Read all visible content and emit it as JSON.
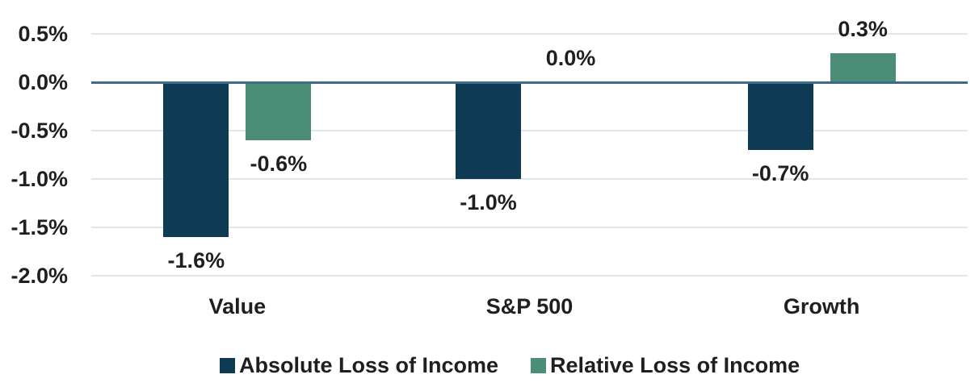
{
  "chart_data": {
    "type": "bar",
    "title": "",
    "categories": [
      "Value",
      "S&P 500",
      "Growth"
    ],
    "series": [
      {
        "name": "Absolute Loss of Income",
        "color": "#0e3a54",
        "values": [
          -1.6,
          -1.0,
          -0.7
        ],
        "labels": [
          "-1.6%",
          "-1.0%",
          "-0.7%"
        ]
      },
      {
        "name": "Relative Loss of Income",
        "color": "#4b8d76",
        "values": [
          -0.6,
          0.0,
          0.3
        ],
        "labels": [
          "-0.6%",
          "0.0%",
          "0.3%"
        ]
      }
    ],
    "yticks": [
      {
        "label": "0.5%",
        "value": 0.5
      },
      {
        "label": "0.0%",
        "value": 0.0
      },
      {
        "label": "-0.5%",
        "value": -0.5
      },
      {
        "label": "-1.0%",
        "value": -1.0
      },
      {
        "label": "-1.5%",
        "value": -1.5
      },
      {
        "label": "-2.0%",
        "value": -2.0
      }
    ],
    "ylim": [
      -2.0,
      0.5
    ],
    "grid": true,
    "legend_position": "bottom",
    "xlabel": "",
    "ylabel": ""
  },
  "colors": {
    "absolute_series": "#0e3a54",
    "relative_series": "#4b8d76",
    "gridline": "#dce7f0",
    "zero_line": "#3d6a86",
    "text": "#1f1f1f"
  }
}
